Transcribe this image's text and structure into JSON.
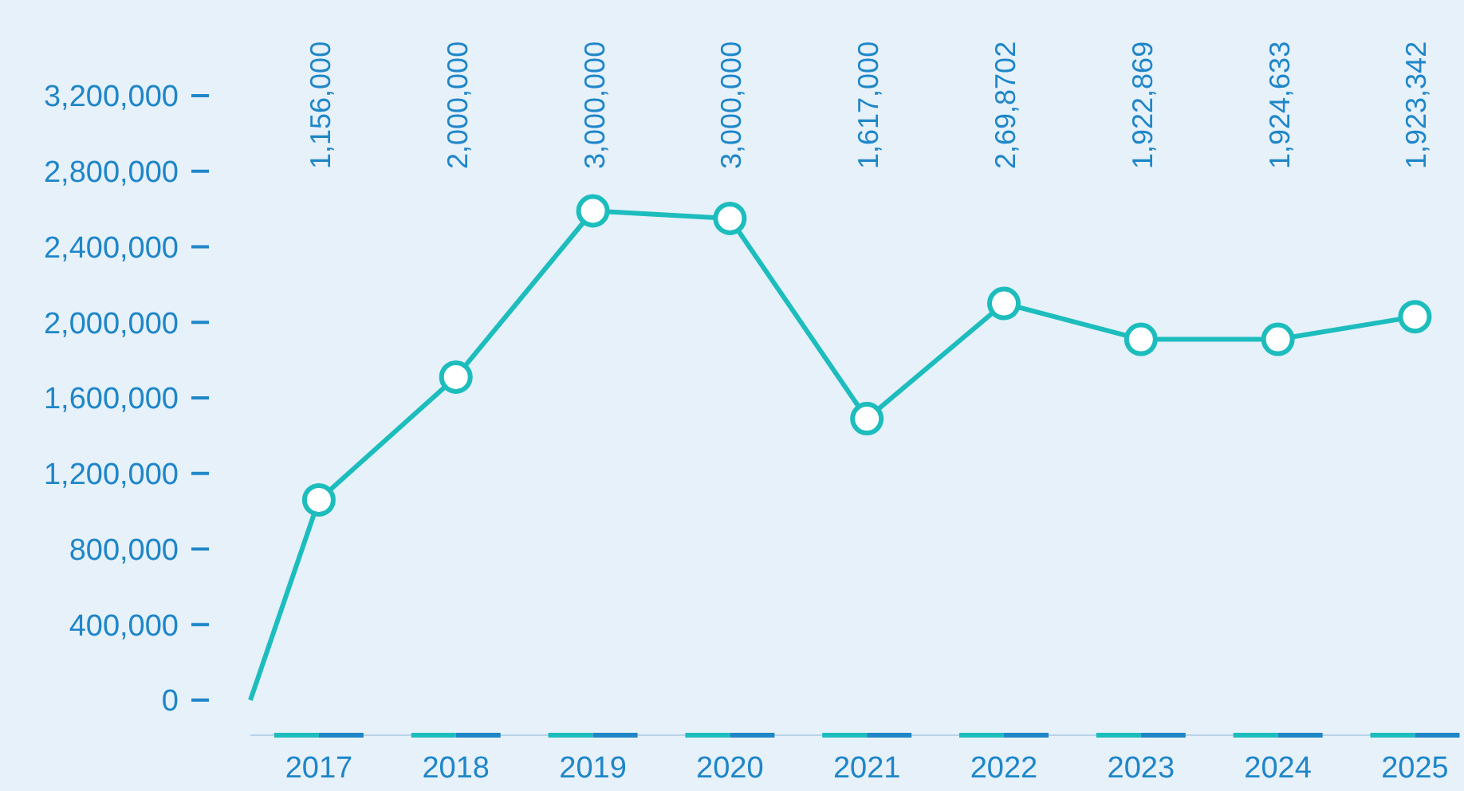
{
  "chart_data": {
    "type": "line",
    "x": [
      2016.5,
      2017,
      2018,
      2019,
      2020,
      2021,
      2022,
      2023,
      2024,
      2025
    ],
    "values": [
      0,
      1060000,
      1710000,
      2590000,
      2550000,
      1490000,
      2100000,
      1910000,
      1910000,
      2030000
    ],
    "annotations": [
      "1,156,000",
      "2,000,000",
      "3,000,000",
      "3,000,000",
      "1,617,000",
      "2,69,8702",
      "1,922,869",
      "1,924,633",
      "1,923,342"
    ],
    "color": "#1dbdbd",
    "marker": "circle",
    "line_style": "solid",
    "grid": false,
    "xlim": [
      2016.5,
      2025.3
    ],
    "xticks": [
      2017,
      2018,
      2019,
      2020,
      2021,
      2022,
      2023,
      2024,
      2025
    ],
    "ylim": [
      0,
      3200000
    ],
    "yticks": [
      {
        "value": 0,
        "label": "0"
      },
      {
        "value": 400000,
        "label": "400,000"
      },
      {
        "value": 800000,
        "label": "800,000"
      },
      {
        "value": 1200000,
        "label": "1,200,000"
      },
      {
        "value": 1600000,
        "label": "1,600,000"
      },
      {
        "value": 2000000,
        "label": "2,000,000"
      },
      {
        "value": 2400000,
        "label": "2,400,000"
      },
      {
        "value": 2800000,
        "label": "2,800,000"
      },
      {
        "value": 3200000,
        "label": "3,200,000"
      }
    ]
  }
}
